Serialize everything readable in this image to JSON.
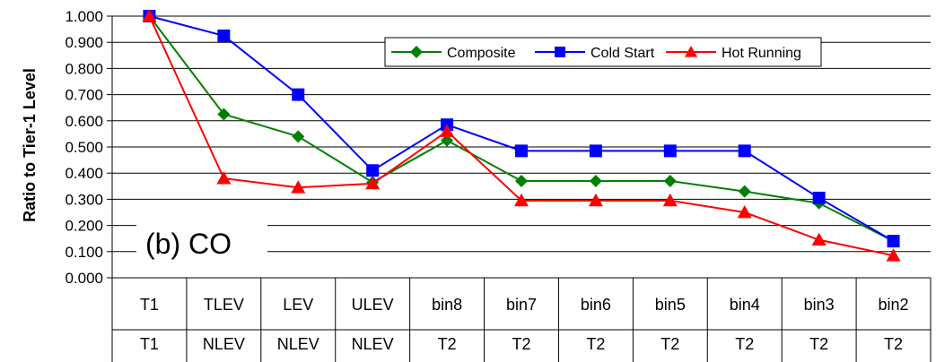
{
  "chart_data": {
    "type": "line",
    "ylabel": "Ratio to Tier-1 Level",
    "ylim": [
      0,
      1
    ],
    "yticks": [
      "0.000",
      "0.100",
      "0.200",
      "0.300",
      "0.400",
      "0.500",
      "0.600",
      "0.700",
      "0.800",
      "0.900",
      "1.000"
    ],
    "categories": [
      "T1",
      "TLEV",
      "LEV",
      "ULEV",
      "bin8",
      "bin7",
      "bin6",
      "bin5",
      "bin4",
      "bin3",
      "bin2"
    ],
    "categories_row2": [
      "T1",
      "NLEV",
      "NLEV",
      "NLEV",
      "T2",
      "T2",
      "T2",
      "T2",
      "T2",
      "T2",
      "T2"
    ],
    "annotation": "(b) CO",
    "grid": true,
    "legend_position": "top-right",
    "series": [
      {
        "name": "Composite",
        "color": "#008000",
        "marker": "diamond",
        "values": [
          1.0,
          0.625,
          0.54,
          0.365,
          0.525,
          0.37,
          0.37,
          0.37,
          0.33,
          0.285,
          0.14
        ]
      },
      {
        "name": "Cold Start",
        "color": "#0000ff",
        "marker": "square",
        "values": [
          1.0,
          0.925,
          0.7,
          0.41,
          0.585,
          0.485,
          0.485,
          0.485,
          0.485,
          0.305,
          0.14
        ]
      },
      {
        "name": "Hot Running",
        "color": "#ff0000",
        "marker": "triangle",
        "values": [
          1.0,
          0.38,
          0.345,
          0.36,
          0.56,
          0.295,
          0.295,
          0.295,
          0.25,
          0.145,
          0.085
        ]
      }
    ]
  }
}
